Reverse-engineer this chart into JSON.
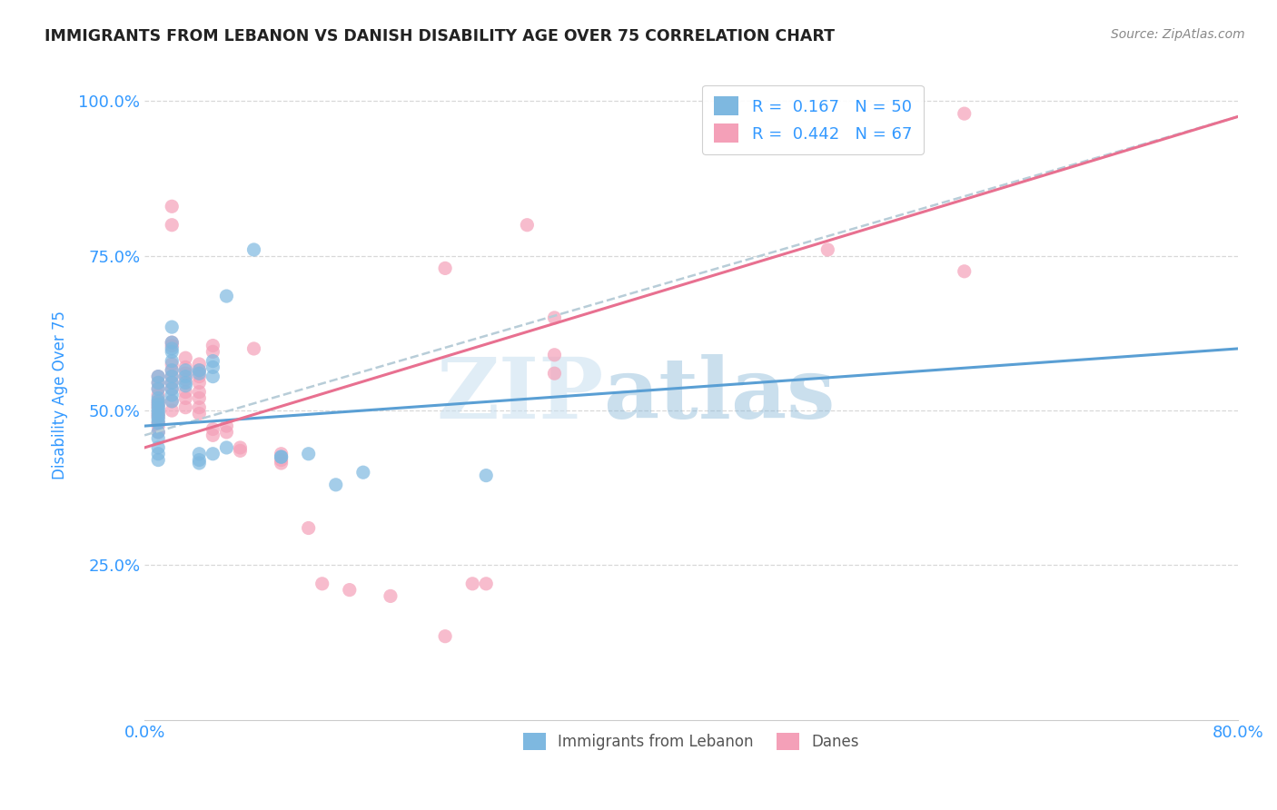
{
  "title": "IMMIGRANTS FROM LEBANON VS DANISH DISABILITY AGE OVER 75 CORRELATION CHART",
  "source": "Source: ZipAtlas.com",
  "ylabel": "Disability Age Over 75",
  "x_min": 0.0,
  "x_max": 0.8,
  "y_min": 0.0,
  "y_max": 1.05,
  "blue_scatter": [
    [
      0.01,
      0.495
    ],
    [
      0.01,
      0.48
    ],
    [
      0.01,
      0.51
    ],
    [
      0.01,
      0.52
    ],
    [
      0.01,
      0.535
    ],
    [
      0.01,
      0.5
    ],
    [
      0.01,
      0.545
    ],
    [
      0.01,
      0.555
    ],
    [
      0.01,
      0.49
    ],
    [
      0.01,
      0.505
    ],
    [
      0.01,
      0.515
    ],
    [
      0.01,
      0.485
    ],
    [
      0.01,
      0.465
    ],
    [
      0.01,
      0.455
    ],
    [
      0.01,
      0.44
    ],
    [
      0.01,
      0.43
    ],
    [
      0.01,
      0.42
    ],
    [
      0.02,
      0.6
    ],
    [
      0.02,
      0.635
    ],
    [
      0.02,
      0.61
    ],
    [
      0.02,
      0.595
    ],
    [
      0.02,
      0.58
    ],
    [
      0.02,
      0.565
    ],
    [
      0.02,
      0.555
    ],
    [
      0.02,
      0.545
    ],
    [
      0.02,
      0.535
    ],
    [
      0.02,
      0.525
    ],
    [
      0.02,
      0.515
    ],
    [
      0.03,
      0.555
    ],
    [
      0.03,
      0.545
    ],
    [
      0.03,
      0.54
    ],
    [
      0.03,
      0.565
    ],
    [
      0.04,
      0.565
    ],
    [
      0.04,
      0.56
    ],
    [
      0.04,
      0.43
    ],
    [
      0.04,
      0.42
    ],
    [
      0.05,
      0.555
    ],
    [
      0.05,
      0.57
    ],
    [
      0.05,
      0.58
    ],
    [
      0.05,
      0.43
    ],
    [
      0.06,
      0.44
    ],
    [
      0.08,
      0.76
    ],
    [
      0.1,
      0.425
    ],
    [
      0.1,
      0.425
    ],
    [
      0.12,
      0.43
    ],
    [
      0.14,
      0.38
    ],
    [
      0.16,
      0.4
    ],
    [
      0.25,
      0.395
    ],
    [
      0.06,
      0.685
    ],
    [
      0.04,
      0.415
    ]
  ],
  "pink_scatter": [
    [
      0.01,
      0.495
    ],
    [
      0.01,
      0.51
    ],
    [
      0.01,
      0.525
    ],
    [
      0.01,
      0.48
    ],
    [
      0.01,
      0.465
    ],
    [
      0.01,
      0.505
    ],
    [
      0.01,
      0.515
    ],
    [
      0.01,
      0.535
    ],
    [
      0.01,
      0.545
    ],
    [
      0.01,
      0.555
    ],
    [
      0.01,
      0.49
    ],
    [
      0.01,
      0.475
    ],
    [
      0.02,
      0.575
    ],
    [
      0.02,
      0.605
    ],
    [
      0.02,
      0.565
    ],
    [
      0.02,
      0.555
    ],
    [
      0.02,
      0.545
    ],
    [
      0.02,
      0.535
    ],
    [
      0.02,
      0.515
    ],
    [
      0.02,
      0.5
    ],
    [
      0.02,
      0.61
    ],
    [
      0.03,
      0.585
    ],
    [
      0.03,
      0.57
    ],
    [
      0.03,
      0.56
    ],
    [
      0.03,
      0.55
    ],
    [
      0.03,
      0.53
    ],
    [
      0.03,
      0.52
    ],
    [
      0.03,
      0.505
    ],
    [
      0.04,
      0.575
    ],
    [
      0.04,
      0.565
    ],
    [
      0.04,
      0.555
    ],
    [
      0.04,
      0.545
    ],
    [
      0.04,
      0.53
    ],
    [
      0.04,
      0.52
    ],
    [
      0.04,
      0.505
    ],
    [
      0.04,
      0.495
    ],
    [
      0.05,
      0.605
    ],
    [
      0.05,
      0.595
    ],
    [
      0.05,
      0.47
    ],
    [
      0.05,
      0.46
    ],
    [
      0.06,
      0.475
    ],
    [
      0.06,
      0.465
    ],
    [
      0.07,
      0.44
    ],
    [
      0.07,
      0.435
    ],
    [
      0.08,
      0.6
    ],
    [
      0.1,
      0.43
    ],
    [
      0.1,
      0.42
    ],
    [
      0.1,
      0.415
    ],
    [
      0.12,
      0.31
    ],
    [
      0.13,
      0.22
    ],
    [
      0.15,
      0.21
    ],
    [
      0.18,
      0.2
    ],
    [
      0.22,
      0.135
    ],
    [
      0.24,
      0.22
    ],
    [
      0.25,
      0.22
    ],
    [
      0.3,
      0.56
    ],
    [
      0.3,
      0.59
    ],
    [
      0.02,
      0.8
    ],
    [
      0.02,
      0.83
    ],
    [
      0.28,
      0.8
    ],
    [
      0.3,
      0.65
    ],
    [
      0.22,
      0.73
    ],
    [
      0.5,
      0.76
    ],
    [
      0.6,
      0.98
    ],
    [
      0.6,
      0.725
    ]
  ],
  "blue_line": {
    "x": [
      0.0,
      0.8
    ],
    "y": [
      0.475,
      0.6
    ]
  },
  "pink_line": {
    "x": [
      0.0,
      0.8
    ],
    "y": [
      0.44,
      0.975
    ]
  },
  "dashed_line": {
    "x": [
      0.0,
      0.8
    ],
    "y": [
      0.46,
      0.975
    ]
  },
  "watermark_zip": "ZIP",
  "watermark_atlas": "atlas",
  "blue_color": "#7eb8e0",
  "pink_color": "#f4a0b8",
  "blue_line_color": "#5a9fd4",
  "pink_line_color": "#e87090",
  "dashed_line_color": "#b8cdd8",
  "background_color": "#ffffff",
  "grid_color": "#d8d8d8",
  "title_color": "#222222",
  "axis_label_color": "#3399ff",
  "tick_label_color": "#3399ff"
}
